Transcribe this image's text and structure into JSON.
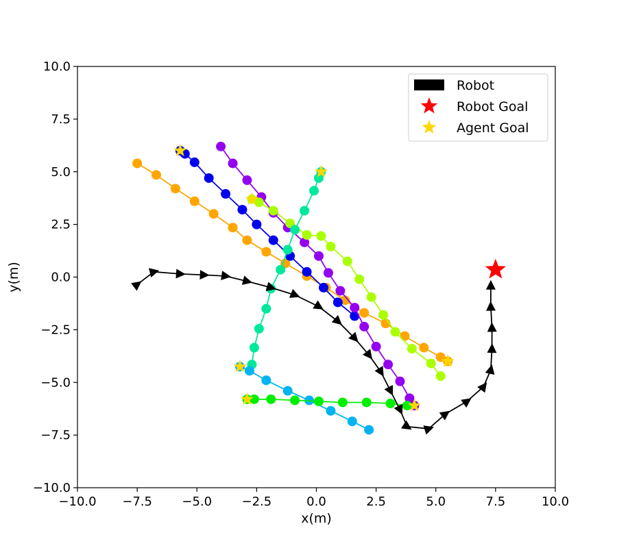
{
  "chart_data": {
    "type": "line",
    "title": "",
    "xlabel": "x(m)",
    "ylabel": "y(m)",
    "xlim": [
      -10,
      10
    ],
    "ylim": [
      -10,
      10
    ],
    "grid": false,
    "legend_position": "top-right",
    "x_ticks": [
      "−10.0",
      "−7.5",
      "−5.0",
      "−2.5",
      "0.0",
      "2.5",
      "5.0",
      "7.5",
      "10.0"
    ],
    "y_ticks": [
      "−10.0",
      "−7.5",
      "−5.0",
      "−2.5",
      "0.0",
      "2.5",
      "5.0",
      "7.5",
      "10.0"
    ],
    "legend": [
      {
        "label": "Robot",
        "marker": "rect",
        "color": "#000000"
      },
      {
        "label": "Robot Goal",
        "marker": "star",
        "color": "#ff0000"
      },
      {
        "label": "Agent Goal",
        "marker": "star",
        "color": "#ffd700"
      }
    ],
    "robot": {
      "color": "#000000",
      "points": [
        [
          -7.5,
          -0.35
        ],
        [
          -6.8,
          0.25
        ],
        [
          -5.7,
          0.15
        ],
        [
          -4.7,
          0.1
        ],
        [
          -3.8,
          0.05
        ],
        [
          -2.9,
          -0.2
        ],
        [
          -1.9,
          -0.5
        ],
        [
          -0.9,
          -0.85
        ],
        [
          0.1,
          -1.4
        ],
        [
          0.9,
          -2.1
        ],
        [
          1.6,
          -2.9
        ],
        [
          2.2,
          -3.7
        ],
        [
          2.7,
          -4.5
        ],
        [
          3.1,
          -5.4
        ],
        [
          3.5,
          -6.3
        ],
        [
          3.8,
          -7.1
        ],
        [
          4.7,
          -7.2
        ],
        [
          5.4,
          -6.5
        ],
        [
          6.3,
          -5.9
        ],
        [
          7.0,
          -5.2
        ],
        [
          7.3,
          -4.4
        ],
        [
          7.35,
          -3.4
        ],
        [
          7.35,
          -2.4
        ],
        [
          7.3,
          -1.4
        ],
        [
          7.3,
          -0.4
        ]
      ],
      "goal": [
        7.5,
        0.35
      ],
      "goal_color": "#ff0000"
    },
    "series": [
      {
        "color": "#ffa500",
        "points": [
          [
            -7.5,
            5.4
          ],
          [
            -6.7,
            4.85
          ],
          [
            -5.9,
            4.2
          ],
          [
            -5.1,
            3.6
          ],
          [
            -4.3,
            3.0
          ],
          [
            -3.5,
            2.35
          ],
          [
            -2.9,
            1.75
          ],
          [
            -2.1,
            1.2
          ],
          [
            -1.3,
            0.65
          ],
          [
            -0.4,
            0.05
          ],
          [
            0.4,
            -0.5
          ],
          [
            1.2,
            -1.1
          ],
          [
            2.0,
            -1.7
          ],
          [
            2.9,
            -2.2
          ],
          [
            3.7,
            -2.8
          ],
          [
            4.5,
            -3.35
          ],
          [
            5.2,
            -3.8
          ],
          [
            5.5,
            -4.0
          ]
        ],
        "goal": [
          5.5,
          -4.0
        ]
      },
      {
        "color": "#0000ee",
        "points": [
          [
            -5.7,
            6.0
          ],
          [
            -5.5,
            5.85
          ],
          [
            -5.1,
            5.45
          ],
          [
            -4.5,
            4.7
          ],
          [
            -3.8,
            3.95
          ],
          [
            -3.1,
            3.2
          ],
          [
            -2.5,
            2.5
          ],
          [
            -1.8,
            1.75
          ],
          [
            -1.1,
            1.0
          ],
          [
            -0.4,
            0.25
          ],
          [
            0.3,
            -0.5
          ],
          [
            0.9,
            -1.2
          ],
          [
            1.6,
            -1.85
          ]
        ],
        "goal": [
          -5.7,
          6.0
        ]
      },
      {
        "color": "#9400f0",
        "points": [
          [
            -4.0,
            6.2
          ],
          [
            -3.5,
            5.4
          ],
          [
            -2.9,
            4.6
          ],
          [
            -2.3,
            3.8
          ],
          [
            -1.8,
            3.05
          ],
          [
            -1.2,
            2.35
          ],
          [
            -0.5,
            1.65
          ],
          [
            0.1,
            1.0
          ],
          [
            0.5,
            0.2
          ],
          [
            1.0,
            -0.65
          ],
          [
            1.6,
            -1.45
          ],
          [
            2.0,
            -2.35
          ],
          [
            2.5,
            -3.3
          ],
          [
            3.0,
            -4.15
          ],
          [
            3.5,
            -4.95
          ],
          [
            3.9,
            -5.75
          ],
          [
            4.1,
            -6.1
          ]
        ],
        "goal": [
          4.1,
          -6.1
        ]
      },
      {
        "color": "#aaff00",
        "points": [
          [
            -2.7,
            3.7
          ],
          [
            -2.4,
            3.55
          ],
          [
            -1.8,
            3.15
          ],
          [
            -1.1,
            2.55
          ],
          [
            -0.4,
            2.0
          ],
          [
            0.2,
            1.95
          ],
          [
            0.6,
            1.45
          ],
          [
            1.3,
            0.75
          ],
          [
            1.8,
            -0.1
          ],
          [
            2.3,
            -0.95
          ],
          [
            2.8,
            -1.8
          ],
          [
            3.3,
            -2.6
          ],
          [
            4.0,
            -3.4
          ],
          [
            4.8,
            -4.1
          ],
          [
            5.2,
            -4.7
          ]
        ],
        "goal": [
          -2.7,
          3.7
        ]
      },
      {
        "color": "#00e899",
        "points": [
          [
            0.2,
            5.0
          ],
          [
            0.1,
            4.7
          ],
          [
            -0.1,
            4.1
          ],
          [
            -0.5,
            3.15
          ],
          [
            -0.9,
            2.25
          ],
          [
            -1.2,
            1.3
          ],
          [
            -1.5,
            0.35
          ],
          [
            -1.9,
            -0.55
          ],
          [
            -2.1,
            -1.5
          ],
          [
            -2.4,
            -2.45
          ],
          [
            -2.6,
            -3.35
          ],
          [
            -2.7,
            -4.15
          ]
        ],
        "goal": [
          0.2,
          5.0
        ]
      },
      {
        "color": "#00b4f0",
        "points": [
          [
            -3.2,
            -4.25
          ],
          [
            -2.8,
            -4.45
          ],
          [
            -2.1,
            -4.9
          ],
          [
            -1.2,
            -5.4
          ],
          [
            -0.3,
            -5.85
          ],
          [
            0.6,
            -6.35
          ],
          [
            1.5,
            -6.85
          ],
          [
            2.2,
            -7.25
          ]
        ],
        "goal": [
          -3.2,
          -4.25
        ]
      },
      {
        "color": "#00ee00",
        "points": [
          [
            -2.9,
            -5.8
          ],
          [
            -2.6,
            -5.8
          ],
          [
            -1.9,
            -5.8
          ],
          [
            -0.9,
            -5.85
          ],
          [
            0.1,
            -5.9
          ],
          [
            1.1,
            -5.95
          ],
          [
            2.1,
            -5.95
          ],
          [
            3.1,
            -6.0
          ],
          [
            3.8,
            -6.1
          ]
        ],
        "goal": [
          -2.9,
          -5.8
        ]
      }
    ]
  }
}
